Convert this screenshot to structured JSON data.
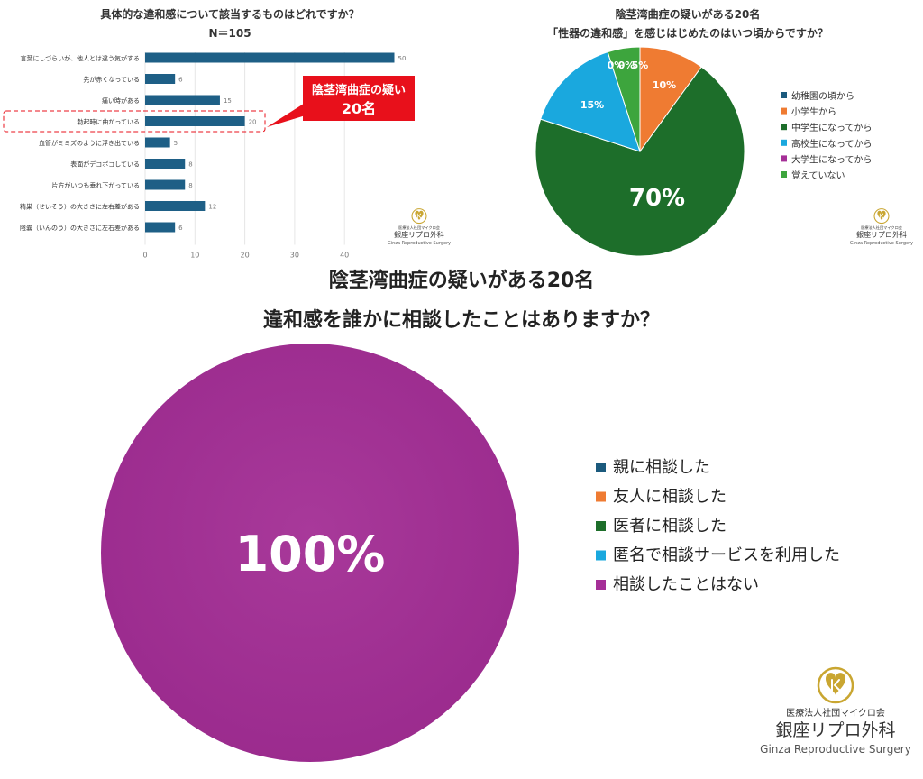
{
  "bar_chart": {
    "title": "具体的な違和感について該当するものはどれですか？",
    "subtitle": "N＝105",
    "callout": {
      "line1": "陰茎湾曲症の疑い",
      "line2": "20名"
    }
  },
  "pie_chart_1": {
    "title": "陰茎湾曲症の疑いがある20名",
    "subtitle": "「性器の違和感」を感じはじめたのはいつ頃からですか？"
  },
  "pie_chart_2": {
    "title": "陰茎湾曲症の疑いがある20名",
    "subtitle": "違和感を誰かに相談したことはありますか？"
  },
  "logo": {
    "org": "医療法人社団マイクロ会",
    "name": "銀座リプロ外科",
    "name_en": "Ginza Reproductive Surgery"
  },
  "colors": {
    "bar": "#1e5f86",
    "callout": "#e8101b",
    "slice_navy": "#1b5a7d",
    "slice_orange": "#ef7b32",
    "slice_green": "#1d6e2a",
    "slice_blue": "#1aa8de",
    "slice_purple": "#a52f97",
    "slice_lightgreen": "#3da53d",
    "logo_gold": "#c9a631"
  },
  "chart_data": [
    {
      "type": "bar",
      "orientation": "horizontal",
      "categories": [
        "言葉にしづらいが、他人とは違う気がする",
        "先が赤くなっている",
        "痛い時がある",
        "勃起時に曲がっている",
        "血管がミミズのように浮き出ている",
        "表面がデコボコしている",
        "片方がいつも垂れ下がっている",
        "精巣（せいそう）の大きさに左右差がある",
        "陰嚢（いんのう）の大きさに左右差がある"
      ],
      "values": [
        50,
        6,
        15,
        20,
        5,
        8,
        8,
        12,
        6
      ],
      "xlim": [
        0,
        50
      ],
      "xticks": [
        0,
        10,
        20,
        30,
        40
      ],
      "highlight": "勃起時に曲がっている"
    },
    {
      "type": "pie",
      "labels": [
        "幼稚園の頃から",
        "小学生から",
        "中学生になってから",
        "高校生になってから",
        "大学生になってから",
        "覚えていない"
      ],
      "values": [
        0,
        10,
        70,
        15,
        0,
        5
      ],
      "value_labels": [
        "0%",
        "10%",
        "70%",
        "15%",
        "0%",
        "5%"
      ],
      "colors": [
        "#1b5a7d",
        "#ef7b32",
        "#1d6e2a",
        "#1aa8de",
        "#a52f97",
        "#3da53d"
      ],
      "legend_position": "right"
    },
    {
      "type": "pie",
      "labels": [
        "親に相談した",
        "友人に相談した",
        "医者に相談した",
        "匿名で相談サービスを利用した",
        "相談したことはない"
      ],
      "values": [
        0,
        0,
        0,
        0,
        100
      ],
      "value_labels": [
        "",
        "",
        "",
        "",
        "100%"
      ],
      "colors": [
        "#1b5a7d",
        "#ef7b32",
        "#1d6e2a",
        "#1aa8de",
        "#a52f97"
      ],
      "legend_position": "right"
    }
  ]
}
